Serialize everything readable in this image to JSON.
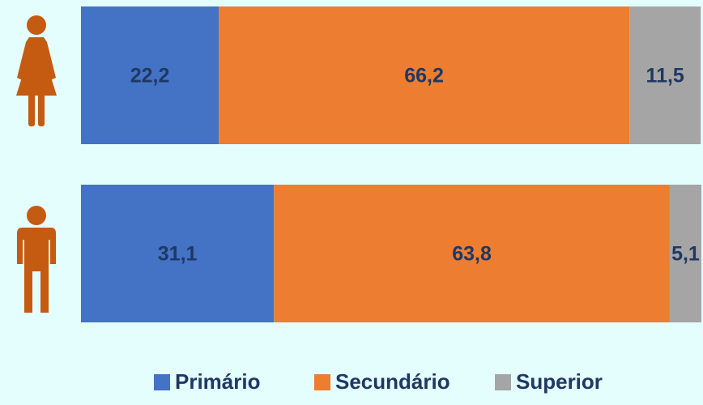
{
  "chart_data": {
    "type": "bar",
    "orientation": "horizontal",
    "stacked": true,
    "categories": [
      null,
      null
    ],
    "series": [
      {
        "name": "Primário",
        "color": "#4472c4",
        "values": [
          22.2,
          31.1
        ],
        "value_labels": [
          "22,2",
          "31,1"
        ]
      },
      {
        "name": "Secundário",
        "color": "#ed7d31",
        "values": [
          66.2,
          63.8
        ],
        "value_labels": [
          "66,2",
          "63,8"
        ]
      },
      {
        "name": "Superior",
        "color": "#a5a5a5",
        "values": [
          11.5,
          5.1
        ],
        "value_labels": [
          "11,5",
          "5,1"
        ]
      }
    ],
    "xlim": [
      0,
      100
    ],
    "legend": "bottom",
    "label_color": "#1f3864"
  }
}
